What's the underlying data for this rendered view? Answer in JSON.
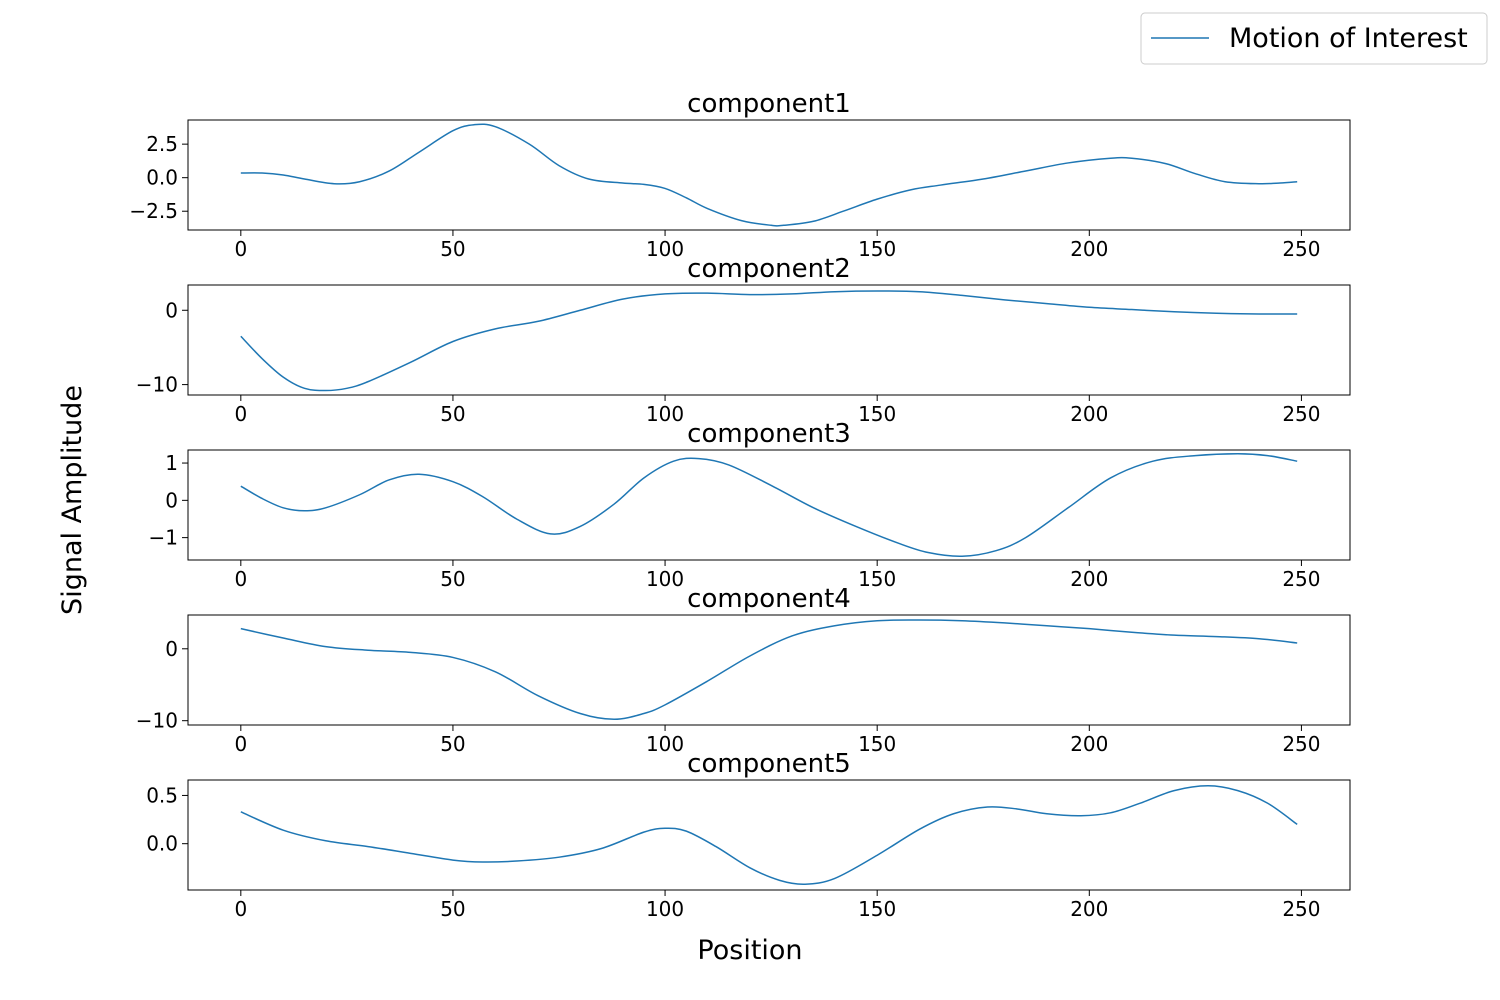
{
  "chart_data": {
    "type": "line",
    "xlabel": "Position",
    "ylabel": "Signal Amplitude",
    "legend": {
      "placement": "top-right",
      "entries": [
        "Motion of Interest"
      ]
    },
    "line_color": "#1f77b4",
    "grid": false,
    "panels": [
      {
        "title": "component1",
        "series_name": "Motion of Interest",
        "xlim": [
          -12.45,
          261.45
        ],
        "ylim": [
          -3.9,
          4.3
        ],
        "x_ticks": [
          0,
          50,
          100,
          150,
          200,
          250
        ],
        "y_ticks": [
          2.5,
          0.0,
          -2.5
        ],
        "y_tick_labels": [
          "2.5",
          "0.0",
          "−2.5"
        ],
        "x": [
          0,
          5,
          10,
          15,
          22,
          28,
          35,
          42,
          50,
          55,
          60,
          68,
          75,
          82,
          90,
          95,
          100,
          105,
          110,
          118,
          125,
          128,
          135,
          142,
          150,
          158,
          165,
          175,
          185,
          195,
          205,
          210,
          218,
          225,
          232,
          240,
          245,
          249
        ],
        "values": [
          0.35,
          0.35,
          0.2,
          -0.1,
          -0.45,
          -0.3,
          0.5,
          1.9,
          3.5,
          3.95,
          3.8,
          2.5,
          0.9,
          -0.1,
          -0.4,
          -0.5,
          -0.8,
          -1.5,
          -2.3,
          -3.2,
          -3.55,
          -3.55,
          -3.25,
          -2.5,
          -1.6,
          -0.9,
          -0.55,
          -0.1,
          0.5,
          1.1,
          1.45,
          1.45,
          1.05,
          0.3,
          -0.3,
          -0.45,
          -0.4,
          -0.3
        ]
      },
      {
        "title": "component2",
        "series_name": "Motion of Interest",
        "xlim": [
          -12.45,
          261.45
        ],
        "ylim": [
          -11.4,
          3.4
        ],
        "x_ticks": [
          0,
          50,
          100,
          150,
          200,
          250
        ],
        "y_ticks": [
          0,
          -10
        ],
        "y_tick_labels": [
          "0",
          "−10"
        ],
        "x": [
          0,
          5,
          10,
          15,
          20,
          25,
          30,
          40,
          50,
          60,
          70,
          80,
          90,
          100,
          110,
          120,
          130,
          140,
          150,
          160,
          170,
          180,
          190,
          200,
          210,
          220,
          230,
          240,
          249
        ],
        "values": [
          -3.5,
          -6.5,
          -9.0,
          -10.5,
          -10.8,
          -10.5,
          -9.6,
          -7.0,
          -4.2,
          -2.5,
          -1.5,
          0.0,
          1.5,
          2.2,
          2.3,
          2.1,
          2.2,
          2.5,
          2.6,
          2.5,
          2.0,
          1.4,
          0.9,
          0.4,
          0.1,
          -0.2,
          -0.4,
          -0.5,
          -0.5
        ]
      },
      {
        "title": "component3",
        "series_name": "Motion of Interest",
        "xlim": [
          -12.45,
          261.45
        ],
        "ylim": [
          -1.6,
          1.35
        ],
        "x_ticks": [
          0,
          50,
          100,
          150,
          200,
          250
        ],
        "y_ticks": [
          1,
          0,
          -1
        ],
        "y_tick_labels": [
          "1",
          "0",
          "−1"
        ],
        "x": [
          0,
          5,
          10,
          15,
          20,
          28,
          35,
          42,
          50,
          57,
          65,
          73,
          80,
          88,
          95,
          102,
          108,
          115,
          125,
          135,
          145,
          155,
          162,
          170,
          178,
          185,
          195,
          205,
          215,
          225,
          235,
          242,
          249
        ],
        "values": [
          0.38,
          0.05,
          -0.2,
          -0.28,
          -0.2,
          0.15,
          0.55,
          0.7,
          0.5,
          0.1,
          -0.5,
          -0.9,
          -0.7,
          -0.1,
          0.6,
          1.05,
          1.12,
          0.95,
          0.4,
          -0.2,
          -0.7,
          -1.15,
          -1.4,
          -1.5,
          -1.35,
          -1.0,
          -0.2,
          0.6,
          1.05,
          1.2,
          1.25,
          1.2,
          1.05
        ]
      },
      {
        "title": "component4",
        "series_name": "Motion of Interest",
        "xlim": [
          -12.45,
          261.45
        ],
        "ylim": [
          -10.6,
          4.7
        ],
        "x_ticks": [
          0,
          50,
          100,
          150,
          200,
          250
        ],
        "y_ticks": [
          0,
          -10
        ],
        "y_tick_labels": [
          "0",
          "−10"
        ],
        "x": [
          0,
          10,
          20,
          30,
          40,
          50,
          60,
          70,
          80,
          88,
          95,
          100,
          110,
          120,
          130,
          140,
          150,
          160,
          170,
          180,
          190,
          200,
          210,
          220,
          230,
          240,
          249
        ],
        "values": [
          2.8,
          1.5,
          0.3,
          -0.2,
          -0.5,
          -1.2,
          -3.2,
          -6.5,
          -9.0,
          -9.8,
          -9.0,
          -7.8,
          -4.5,
          -1.0,
          1.8,
          3.2,
          3.9,
          4.0,
          3.9,
          3.6,
          3.2,
          2.8,
          2.3,
          1.9,
          1.7,
          1.4,
          0.8
        ]
      },
      {
        "title": "component5",
        "series_name": "Motion of Interest",
        "xlim": [
          -12.45,
          261.45
        ],
        "ylim": [
          -0.48,
          0.66
        ],
        "x_ticks": [
          0,
          50,
          100,
          150,
          200,
          250
        ],
        "y_ticks": [
          0.5,
          0.0
        ],
        "y_tick_labels": [
          "0.5",
          "0.0"
        ],
        "x": [
          0,
          10,
          20,
          30,
          40,
          50,
          57,
          65,
          75,
          85,
          95,
          100,
          105,
          112,
          120,
          127,
          133,
          140,
          150,
          160,
          168,
          176,
          183,
          190,
          198,
          205,
          212,
          220,
          228,
          235,
          242,
          249
        ],
        "values": [
          0.33,
          0.14,
          0.03,
          -0.03,
          -0.1,
          -0.17,
          -0.19,
          -0.18,
          -0.14,
          -0.05,
          0.12,
          0.16,
          0.13,
          -0.03,
          -0.25,
          -0.38,
          -0.42,
          -0.36,
          -0.12,
          0.15,
          0.31,
          0.38,
          0.36,
          0.31,
          0.29,
          0.32,
          0.42,
          0.55,
          0.6,
          0.55,
          0.42,
          0.2
        ]
      }
    ]
  }
}
